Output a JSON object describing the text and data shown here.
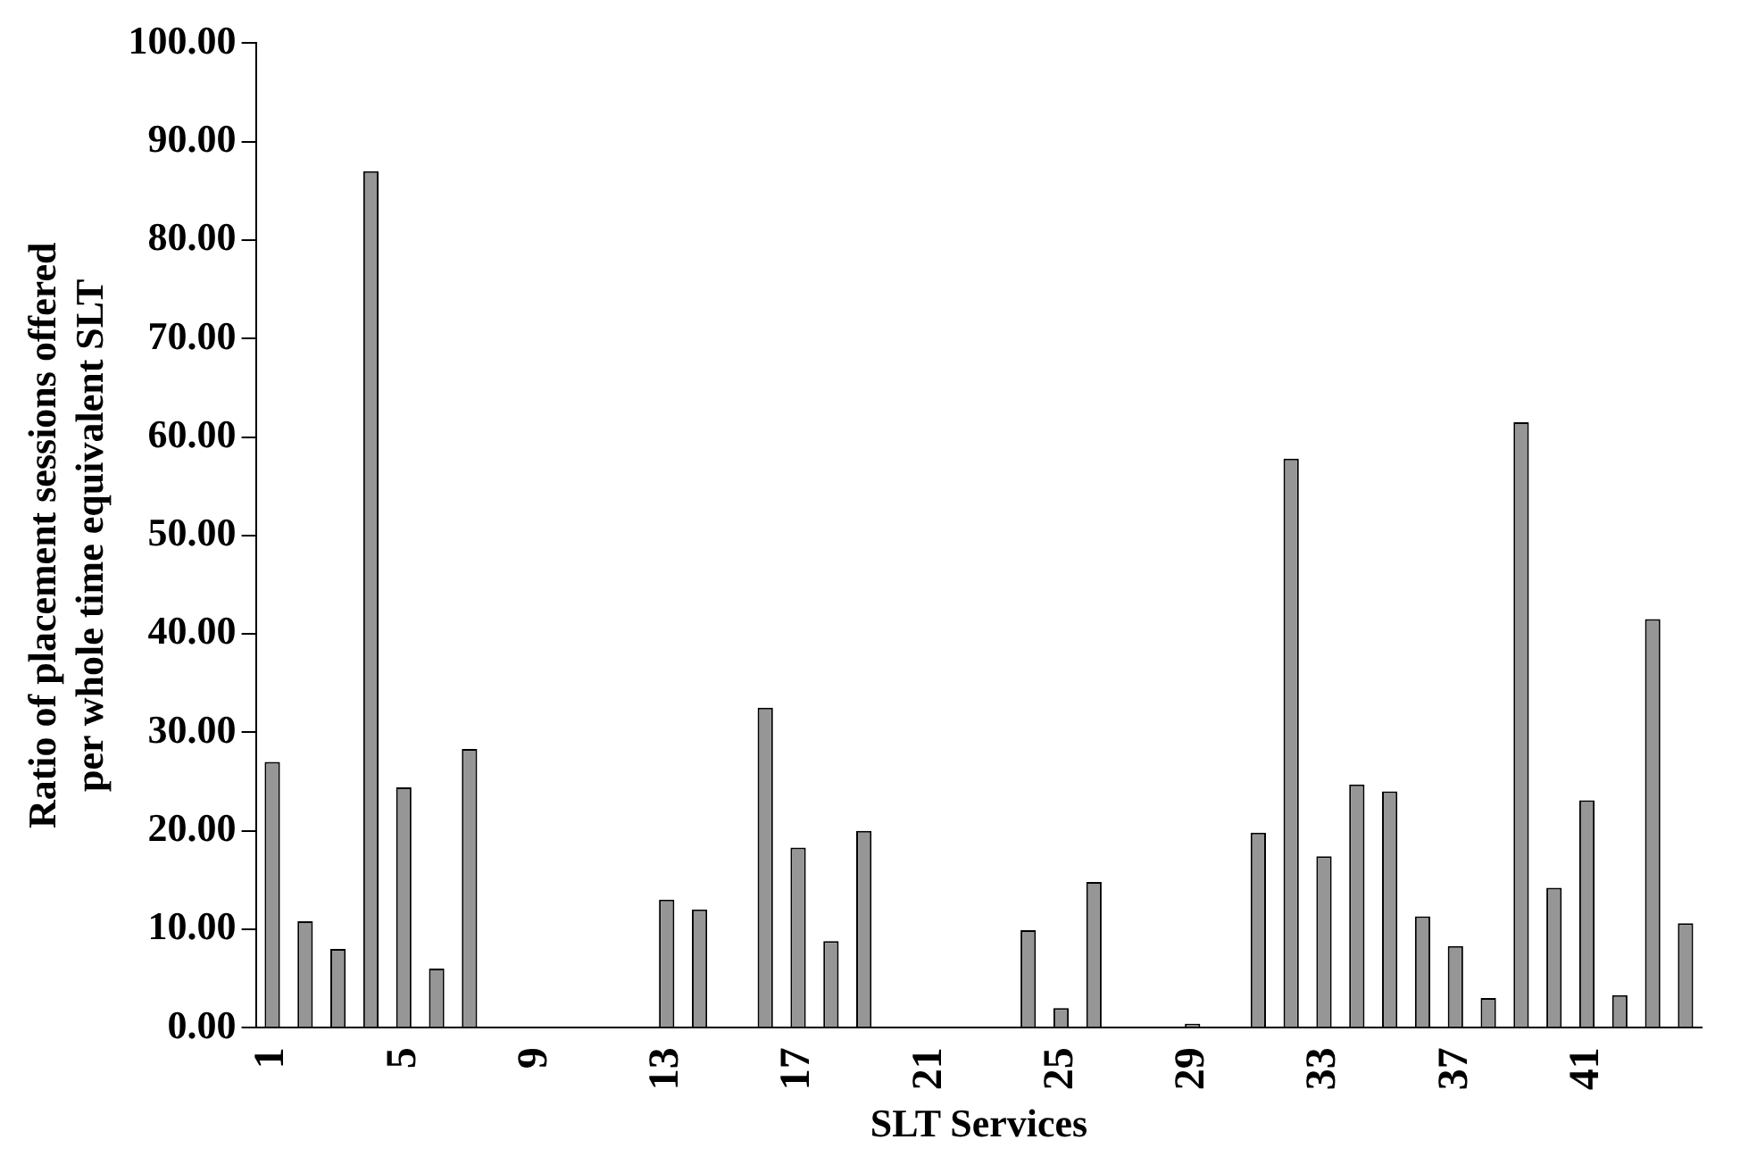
{
  "chart_data": {
    "type": "bar",
    "xlabel": "SLT Services",
    "ylabel": "Ratio of placement sessions offered per whole time equivalent SLT",
    "categories": [
      "1",
      null,
      null,
      null,
      "5",
      null,
      null,
      null,
      "9",
      null,
      null,
      null,
      "13",
      null,
      null,
      null,
      "17",
      null,
      null,
      null,
      "21",
      null,
      null,
      null,
      "25",
      null,
      null,
      null,
      "29",
      null,
      null,
      null,
      "33",
      null,
      null,
      null,
      "37",
      null,
      null,
      null,
      "41",
      null,
      null,
      null
    ],
    "values": [
      27,
      10.8,
      8,
      87,
      24.4,
      6,
      28.3,
      0,
      0,
      0,
      0,
      0,
      13,
      12,
      0,
      32.5,
      18.3,
      8.8,
      20,
      0,
      0,
      0,
      0,
      9.9,
      2,
      14.8,
      0,
      0,
      0.4,
      0,
      19.8,
      57.8,
      17.4,
      24.7,
      24,
      11.3,
      8.3,
      3,
      61.5,
      14.2,
      23.1,
      3.3,
      41.5,
      10.6
    ],
    "color": "#969696",
    "ylim": [
      0,
      100
    ],
    "yticks": [
      {
        "value": 0,
        "label": "0.00"
      },
      {
        "value": 10,
        "label": "10.00"
      },
      {
        "value": 20,
        "label": "20.00"
      },
      {
        "value": 30,
        "label": "30.00"
      },
      {
        "value": 40,
        "label": "40.00"
      },
      {
        "value": 50,
        "label": "50.00"
      },
      {
        "value": 60,
        "label": "60.00"
      },
      {
        "value": 70,
        "label": "70.00"
      },
      {
        "value": 80,
        "label": "80.00"
      },
      {
        "value": 90,
        "label": "90.00"
      },
      {
        "value": 100,
        "label": "100.00"
      }
    ],
    "grid": false,
    "legend": false
  }
}
